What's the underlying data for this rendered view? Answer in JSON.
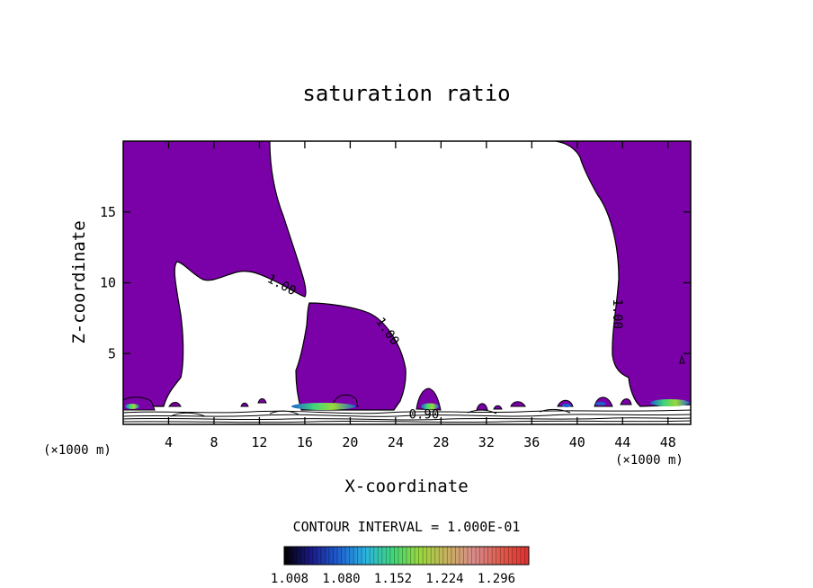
{
  "chart_data": {
    "type": "contour",
    "title": "saturation ratio",
    "xlabel": "X-coordinate",
    "ylabel": "Z-coordinate",
    "x_unit_label": "(×1000 m)",
    "y_unit_label": "(×1000 m)",
    "xlim": [
      0,
      50
    ],
    "ylim": [
      0,
      20
    ],
    "x_ticks": [
      4,
      8,
      12,
      16,
      20,
      24,
      28,
      32,
      36,
      40,
      44,
      48
    ],
    "y_ticks": [
      5,
      10,
      15
    ],
    "contour_labels": [
      {
        "text": "1.00",
        "x": 13.8,
        "z": 9.6,
        "angle": 28
      },
      {
        "text": "1.00",
        "x": 23.0,
        "z": 6.4,
        "angle": 55
      },
      {
        "text": "1.00",
        "x": 43.2,
        "z": 7.8,
        "angle": 90
      },
      {
        "text": "0.90",
        "x": 26.5,
        "z": 0.4,
        "angle": 0
      }
    ],
    "interval_text": "CONTOUR INTERVAL = 1.000E-01",
    "colorbar": {
      "labels": [
        "1.008",
        "1.080",
        "1.152",
        "1.224",
        "1.296"
      ],
      "colors": [
        "#000000",
        "#1a1a8a",
        "#1e5fd0",
        "#2bb5e0",
        "#3fd67a",
        "#9ad83a",
        "#c8b060",
        "#d88a8a",
        "#e05a4a",
        "#e03030"
      ]
    },
    "fill_color": "#7a00a8"
  }
}
